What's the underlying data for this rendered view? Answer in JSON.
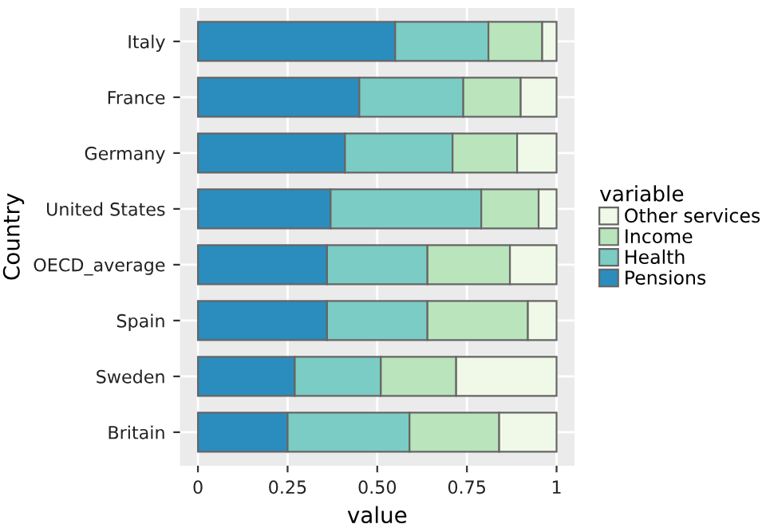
{
  "chart_data": {
    "type": "bar",
    "orientation": "horizontal",
    "stacked": true,
    "xlabel": "value",
    "ylabel": "Country",
    "legend_title": "variable",
    "legend": "right",
    "grid": true,
    "categories": [
      "Italy",
      "France",
      "Germany",
      "United States",
      "OECD_average",
      "Spain",
      "Sweden",
      "Britain"
    ],
    "series": [
      {
        "name": "Pensions",
        "color": "#2b8cbe",
        "values": [
          0.55,
          0.45,
          0.41,
          0.37,
          0.36,
          0.36,
          0.27,
          0.25
        ]
      },
      {
        "name": "Health",
        "color": "#7bccc4",
        "values": [
          0.26,
          0.29,
          0.3,
          0.42,
          0.28,
          0.28,
          0.24,
          0.34
        ]
      },
      {
        "name": "Income",
        "color": "#bae4bc",
        "values": [
          0.15,
          0.16,
          0.18,
          0.16,
          0.23,
          0.28,
          0.21,
          0.25
        ]
      },
      {
        "name": "Other services",
        "color": "#f0f9e8",
        "values": [
          0.04,
          0.1,
          0.11,
          0.05,
          0.13,
          0.08,
          0.28,
          0.16
        ]
      }
    ],
    "xlim": [
      -0.05,
      1.05
    ],
    "xticks": [
      0,
      {
        "value": 0.25,
        "label": "0.25"
      },
      {
        "value": 0.5,
        "label": "0.50"
      },
      {
        "value": 0.75,
        "label": "0.75"
      },
      1
    ]
  }
}
